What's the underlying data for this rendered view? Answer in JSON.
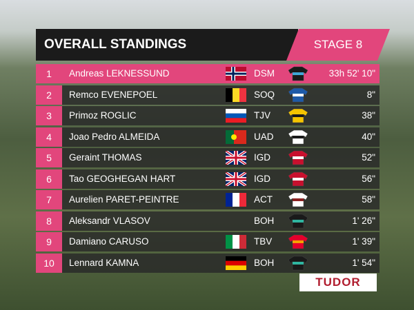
{
  "header": {
    "title": "OVERALL STANDINGS",
    "stage": "STAGE 8"
  },
  "table": {
    "rows": [
      {
        "rank": 1,
        "name": "Andreas LEKNESSUND",
        "team": "DSM",
        "time": "33h 52' 10\""
      },
      {
        "rank": 2,
        "name": "Remco EVENEPOEL",
        "team": "SOQ",
        "time": "8\""
      },
      {
        "rank": 3,
        "name": "Primoz ROGLIC",
        "team": "TJV",
        "time": "38\""
      },
      {
        "rank": 4,
        "name": "Joao Pedro ALMEIDA",
        "team": "UAD",
        "time": "40\""
      },
      {
        "rank": 5,
        "name": "Geraint THOMAS",
        "team": "IGD",
        "time": "52\""
      },
      {
        "rank": 6,
        "name": "Tao GEOGHEGAN HART",
        "team": "IGD",
        "time": "56\""
      },
      {
        "rank": 7,
        "name": "Aurelien PARET-PEINTRE",
        "team": "ACT",
        "time": "58\""
      },
      {
        "rank": 8,
        "name": "Aleksandr VLASOV",
        "team": "BOH",
        "time": "1' 26\""
      },
      {
        "rank": 9,
        "name": "Damiano CARUSO",
        "team": "TBV",
        "time": "1' 39\""
      },
      {
        "rank": 10,
        "name": "Lennard KAMNA",
        "team": "BOH",
        "time": "1' 54\""
      }
    ]
  },
  "sponsor": "TUDOR"
}
